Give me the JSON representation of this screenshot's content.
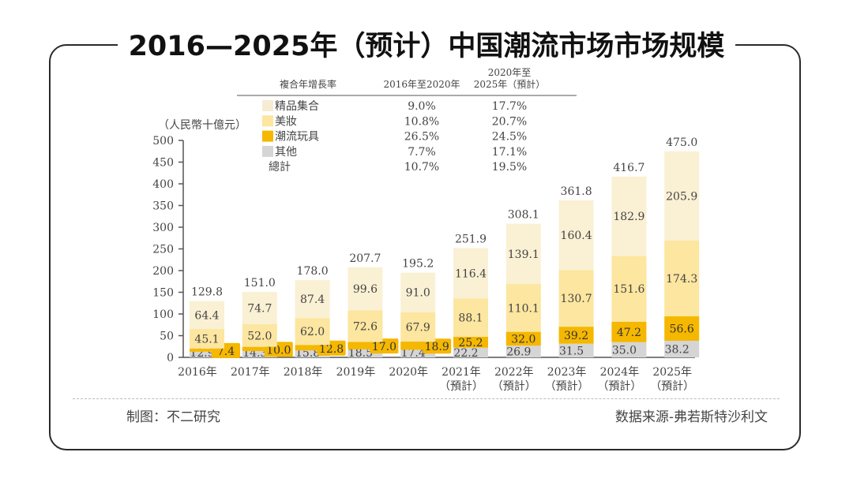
{
  "title": "2016—2025年（预计）中国潮流市场市场规模",
  "footer": {
    "left": "制图：不二研究",
    "right": "数据来源-弗若斯特沙利文"
  },
  "chart_data": {
    "type": "bar",
    "stacked": true,
    "title": "2016—2025年（预计）中国潮流市场市场规模",
    "ylabel": "（人民幣十億元）",
    "ylim": [
      0,
      500
    ],
    "yticks": [
      "0",
      "50",
      "100",
      "150",
      "200",
      "250",
      "300",
      "350",
      "400",
      "450",
      "500"
    ],
    "categories": [
      "2016年",
      "2017年",
      "2018年",
      "2019年",
      "2020年",
      "2021年",
      "2022年",
      "2023年",
      "2024年",
      "2025年"
    ],
    "category_sub": [
      "",
      "",
      "",
      "",
      "",
      "（預計）",
      "（預計）",
      "（預計）",
      "（預計）",
      "（預計）"
    ],
    "series": [
      {
        "name": "其他",
        "color": "#d5d5d5",
        "values": [
          12.9,
          14.3,
          15.8,
          18.5,
          17.4,
          22.2,
          26.9,
          31.5,
          35.0,
          38.2
        ]
      },
      {
        "name": "潮流玩具",
        "color": "#f5b700",
        "values": [
          7.4,
          10.0,
          12.8,
          17.0,
          18.9,
          25.2,
          32.0,
          39.2,
          47.2,
          56.6
        ]
      },
      {
        "name": "美妆",
        "color": "#fce6a0",
        "values": [
          45.1,
          52.0,
          62.0,
          72.6,
          67.9,
          88.1,
          110.1,
          130.7,
          151.6,
          174.3
        ]
      },
      {
        "name": "精品集合",
        "color": "#faf0d4",
        "values": [
          64.4,
          74.7,
          87.4,
          99.6,
          91.0,
          116.4,
          139.1,
          160.4,
          182.9,
          205.9
        ]
      }
    ],
    "totals": [
      "129.8",
      "151.0",
      "178.0",
      "207.7",
      "195.2",
      "251.9",
      "308.1",
      "361.8",
      "416.7",
      "475.0"
    ],
    "cagr_table": {
      "headers": [
        "複合年增長率",
        "2016年至2020年",
        "2020年至",
        "2025年（預計）"
      ],
      "rows": [
        {
          "name": "精品集合",
          "a": "9.0%",
          "b": "17.7%",
          "color": "#f5ecd3"
        },
        {
          "name": "美妝",
          "a": "10.8%",
          "b": "20.7%",
          "color": "#fce6a0"
        },
        {
          "name": "潮流玩具",
          "a": "26.5%",
          "b": "24.5%",
          "color": "#f5b700"
        },
        {
          "name": "其他",
          "a": "7.7%",
          "b": "17.1%",
          "color": "#d5d5d5"
        },
        {
          "name": "總計",
          "a": "10.7%",
          "b": "19.5%",
          "color": ""
        }
      ]
    }
  }
}
